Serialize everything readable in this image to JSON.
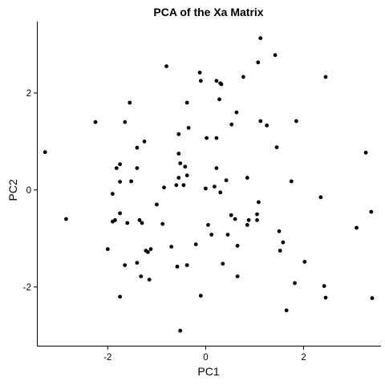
{
  "chart_data": {
    "type": "scatter",
    "title": "PCA of the Xa Matrix",
    "xlabel": "PC1",
    "ylabel": "PC2",
    "xlim": [
      -3.43,
      3.58
    ],
    "ylim": [
      -3.21,
      3.47
    ],
    "x_ticks": [
      -2,
      0,
      2
    ],
    "y_ticks": [
      -2,
      0,
      2
    ],
    "x_tick_labels": [
      "-2",
      "0",
      "2"
    ],
    "y_tick_labels": [
      "-2",
      "0",
      "2"
    ],
    "grid": false,
    "legend": "none",
    "point_color": "#000000",
    "points": [
      [
        1.12,
        3.13
      ],
      [
        1.42,
        2.78
      ],
      [
        1.07,
        2.63
      ],
      [
        -0.8,
        2.55
      ],
      [
        -0.12,
        2.42
      ],
      [
        0.77,
        2.33
      ],
      [
        2.45,
        2.33
      ],
      [
        -0.1,
        2.25
      ],
      [
        0.22,
        2.25
      ],
      [
        0.3,
        2.2
      ],
      [
        0.32,
        2.18
      ],
      [
        0.28,
        1.87
      ],
      [
        -1.55,
        1.8
      ],
      [
        -0.38,
        1.8
      ],
      [
        0.63,
        1.6
      ],
      [
        -2.25,
        1.4
      ],
      [
        -1.65,
        1.4
      ],
      [
        1.12,
        1.42
      ],
      [
        1.85,
        1.42
      ],
      [
        0.53,
        1.35
      ],
      [
        1.25,
        1.33
      ],
      [
        -0.35,
        1.28
      ],
      [
        -0.55,
        1.15
      ],
      [
        -1.25,
        1.0
      ],
      [
        0.02,
        1.07
      ],
      [
        0.22,
        1.07
      ],
      [
        -1.4,
        0.87
      ],
      [
        1.45,
        0.88
      ],
      [
        -3.28,
        0.78
      ],
      [
        3.27,
        0.77
      ],
      [
        -0.55,
        0.75
      ],
      [
        -0.52,
        0.55
      ],
      [
        -1.75,
        0.53
      ],
      [
        -1.82,
        0.45
      ],
      [
        -1.4,
        0.45
      ],
      [
        -0.42,
        0.48
      ],
      [
        0.22,
        0.45
      ],
      [
        -0.38,
        0.3
      ],
      [
        -0.55,
        0.25
      ],
      [
        0.85,
        0.25
      ],
      [
        -1.75,
        0.17
      ],
      [
        -1.52,
        0.18
      ],
      [
        0.42,
        0.2
      ],
      [
        1.75,
        0.18
      ],
      [
        -0.6,
        0.1
      ],
      [
        0.18,
        0.07
      ],
      [
        -0.85,
        0.05
      ],
      [
        -0.45,
        0.1
      ],
      [
        0.0,
        0.03
      ],
      [
        -1.9,
        -0.08
      ],
      [
        0.3,
        -0.05
      ],
      [
        2.35,
        -0.15
      ],
      [
        1.08,
        -0.25
      ],
      [
        -1.75,
        -0.48
      ],
      [
        -1.35,
        -0.62
      ],
      [
        -1.85,
        -0.62
      ],
      [
        -1.9,
        -0.65
      ],
      [
        -2.85,
        -0.6
      ],
      [
        -1.3,
        -0.68
      ],
      [
        -1.6,
        -0.68
      ],
      [
        -0.88,
        -0.7
      ],
      [
        0.52,
        -0.52
      ],
      [
        0.6,
        -0.6
      ],
      [
        1.05,
        -0.5
      ],
      [
        0.88,
        -0.62
      ],
      [
        1.05,
        -0.62
      ],
      [
        0.05,
        -0.72
      ],
      [
        0.85,
        -0.72
      ],
      [
        3.38,
        -0.45
      ],
      [
        3.08,
        -0.78
      ],
      [
        1.5,
        -0.85
      ],
      [
        0.12,
        -0.92
      ],
      [
        0.45,
        -0.92
      ],
      [
        -2.0,
        -1.22
      ],
      [
        -1.22,
        -1.25
      ],
      [
        -1.18,
        -1.28
      ],
      [
        -1.12,
        -1.22
      ],
      [
        -1.0,
        -0.3
      ],
      [
        -0.7,
        -1.17
      ],
      [
        -0.2,
        -1.12
      ],
      [
        0.65,
        -1.15
      ],
      [
        1.58,
        -1.08
      ],
      [
        1.52,
        -1.25
      ],
      [
        -1.4,
        -1.5
      ],
      [
        -1.65,
        -1.55
      ],
      [
        -0.58,
        -1.58
      ],
      [
        -0.38,
        -1.55
      ],
      [
        0.35,
        -1.52
      ],
      [
        2.02,
        -1.48
      ],
      [
        -1.32,
        -1.78
      ],
      [
        -1.15,
        -1.85
      ],
      [
        0.65,
        -1.78
      ],
      [
        1.82,
        -1.92
      ],
      [
        2.42,
        -1.98
      ],
      [
        -1.75,
        -2.2
      ],
      [
        -0.1,
        -2.18
      ],
      [
        2.45,
        -2.22
      ],
      [
        3.4,
        -2.23
      ],
      [
        1.65,
        -2.48
      ],
      [
        -0.52,
        -2.9
      ]
    ]
  }
}
